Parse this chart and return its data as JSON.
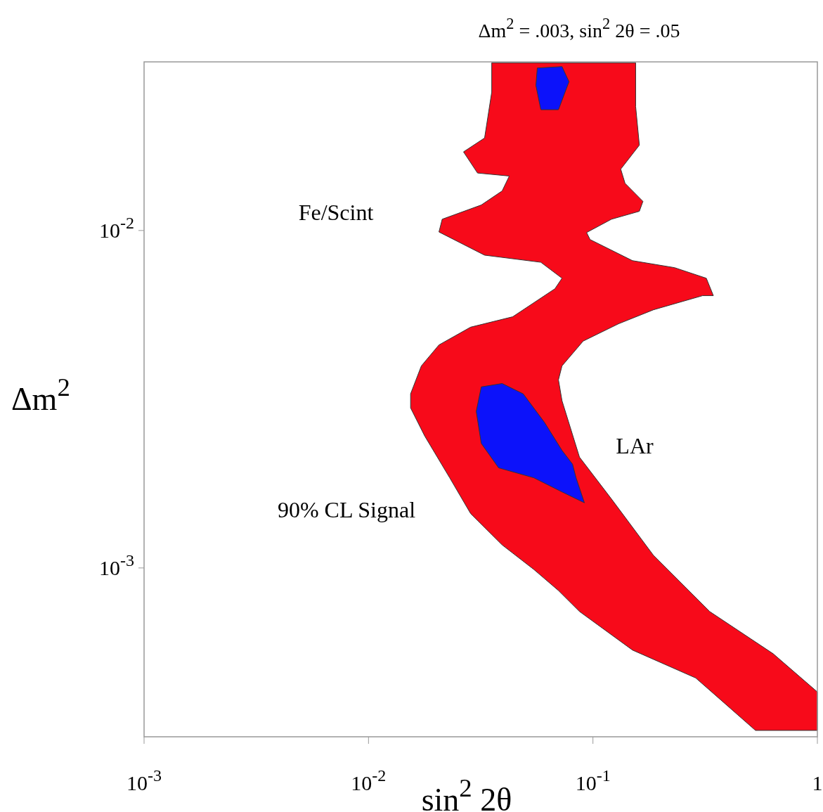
{
  "chart_data": {
    "type": "area",
    "title": "Δm$^{2}$ = .003, sin$^{2}$ 2θ = .05",
    "xlabel": "sin$^{2}$ 2θ",
    "ylabel": "Δm$^{2}$",
    "log": "xy",
    "xlim": [
      0.001,
      1
    ],
    "ylim": [
      0.000316,
      0.0316
    ],
    "xticks": [
      {
        "value": 0.001,
        "label": "10$^{-3}$"
      },
      {
        "value": 0.01,
        "label": "10$^{-2}$"
      },
      {
        "value": 0.1,
        "label": "10$^{-1}$"
      },
      1
    ],
    "yticks": [
      {
        "value": 0.001,
        "label": "10$^{-3}$"
      },
      {
        "value": 0.01,
        "label": "10$^{-2}$"
      }
    ],
    "grid": false,
    "series": [
      {
        "color": "#f70a1a",
        "x": [
          0.0354,
          0.0354,
          0.0329,
          0.0265,
          0.0306,
          0.0424,
          0.0394,
          0.0318,
          0.0213,
          0.0206,
          0.0329,
          0.0586,
          0.0728,
          0.0677,
          0.0439,
          0.0285,
          0.0206,
          0.0172,
          0.0154,
          0.0154,
          0.0178,
          0.023,
          0.0285,
          0.0394,
          0.0545,
          0.0702,
          0.0871,
          0.15,
          0.287,
          0.383,
          0.53,
          1.0,
          1.0,
          0.635,
          0.331,
          0.186,
          0.121,
          0.0871,
          0.0728,
          0.0702,
          0.0728,
          0.0904,
          0.13,
          0.186,
          0.308,
          0.344,
          0.32,
          0.231,
          0.15,
          0.0971,
          0.0937,
          0.121,
          0.161,
          0.167,
          0.139,
          0.133,
          0.161,
          0.155,
          0.155
        ],
        "values": [
          0.0314,
          0.0257,
          0.0188,
          0.0171,
          0.0148,
          0.0145,
          0.0131,
          0.0119,
          0.0108,
          0.0099,
          0.00845,
          0.00805,
          0.00722,
          0.00672,
          0.00555,
          0.00517,
          0.00458,
          0.00397,
          0.00328,
          0.00298,
          0.00246,
          0.00185,
          0.00145,
          0.00117,
          0.00099,
          0.000857,
          0.000743,
          0.000571,
          0.000472,
          0.000399,
          0.00033,
          0.00033,
          0.000429,
          0.000557,
          0.000743,
          0.00109,
          0.0016,
          0.00213,
          0.00313,
          0.00361,
          0.00397,
          0.0047,
          0.00529,
          0.00582,
          0.00641,
          0.00641,
          0.00722,
          0.00776,
          0.00814,
          0.0094,
          0.00986,
          0.0108,
          0.0114,
          0.0122,
          0.0138,
          0.0152,
          0.0179,
          0.0233,
          0.0314
        ]
      },
      {
        "color": "#0c12fa",
        "x": [
          0.0565,
          0.0728,
          0.0782,
          0.0702,
          0.0586,
          0.0557
        ],
        "values": [
          0.0303,
          0.0306,
          0.0276,
          0.0228,
          0.0228,
          0.0269
        ]
      },
      {
        "color": "#0c12fa",
        "x": [
          0.0318,
          0.0394,
          0.0489,
          0.0608,
          0.0728,
          0.0811,
          0.0841,
          0.0916,
          0.0728,
          0.0545,
          0.038,
          0.0318,
          0.0302
        ],
        "values": [
          0.00344,
          0.00352,
          0.00328,
          0.0027,
          0.00223,
          0.00203,
          0.00185,
          0.00156,
          0.00168,
          0.00185,
          0.00198,
          0.00234,
          0.00291
        ]
      }
    ],
    "annotations": [
      "Fe/Scint",
      "LAr",
      "90% CL Signal"
    ]
  }
}
